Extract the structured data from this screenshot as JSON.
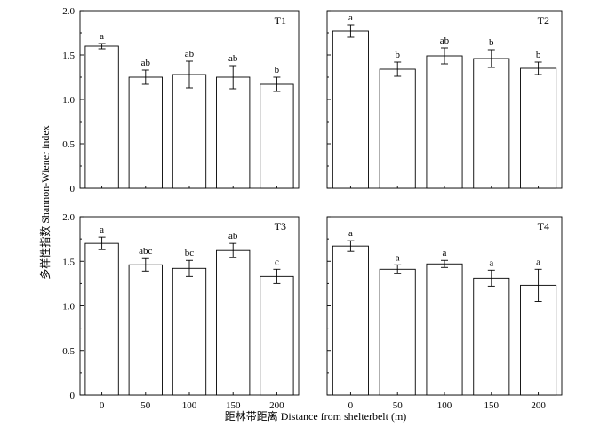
{
  "figure": {
    "ylabel": "多样性指数 Shannon-Wiener index",
    "xlabel": "距林带距离 Distance from shelterbelt (m)"
  },
  "chart_data": [
    {
      "type": "bar",
      "title": "T1",
      "categories": [
        "0",
        "50",
        "100",
        "150",
        "200"
      ],
      "values": [
        1.6,
        1.25,
        1.28,
        1.25,
        1.17
      ],
      "errors": [
        0.03,
        0.08,
        0.15,
        0.13,
        0.08
      ],
      "letters": [
        "a",
        "ab",
        "ab",
        "ab",
        "b"
      ],
      "ylim": [
        0,
        2.0
      ],
      "yticks": [
        "0",
        "0.5",
        "1.0",
        "1.5",
        "2.0"
      ]
    },
    {
      "type": "bar",
      "title": "T2",
      "categories": [
        "0",
        "50",
        "100",
        "150",
        "200"
      ],
      "values": [
        1.77,
        1.34,
        1.49,
        1.46,
        1.35
      ],
      "errors": [
        0.07,
        0.08,
        0.09,
        0.1,
        0.07
      ],
      "letters": [
        "a",
        "b",
        "ab",
        "b",
        "b"
      ],
      "ylim": [
        0,
        2.0
      ],
      "yticks": []
    },
    {
      "type": "bar",
      "title": "T3",
      "categories": [
        "0",
        "50",
        "100",
        "150",
        "200"
      ],
      "values": [
        1.7,
        1.46,
        1.42,
        1.62,
        1.33
      ],
      "errors": [
        0.07,
        0.07,
        0.09,
        0.08,
        0.08
      ],
      "letters": [
        "a",
        "abc",
        "bc",
        "ab",
        "c"
      ],
      "ylim": [
        0,
        2.0
      ],
      "yticks": [
        "0",
        "0.5",
        "1.0",
        "1.5",
        "2.0"
      ]
    },
    {
      "type": "bar",
      "title": "T4",
      "categories": [
        "0",
        "50",
        "100",
        "150",
        "200"
      ],
      "values": [
        1.67,
        1.41,
        1.47,
        1.31,
        1.23
      ],
      "errors": [
        0.06,
        0.05,
        0.04,
        0.09,
        0.18
      ],
      "letters": [
        "a",
        "a",
        "a",
        "a",
        "a"
      ],
      "ylim": [
        0,
        2.0
      ],
      "yticks": []
    }
  ]
}
